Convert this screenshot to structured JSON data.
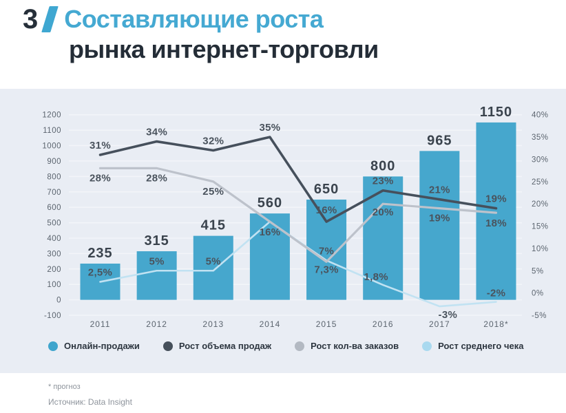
{
  "header": {
    "number": "3",
    "title_line1": "Составляющие роста",
    "title_line2": "рынка интернет-торговли"
  },
  "chart_data": {
    "type": "bar+line",
    "categories": [
      "2011",
      "2012",
      "2013",
      "2014",
      "2015",
      "2016",
      "2017",
      "2018*"
    ],
    "bar_series": {
      "name": "Онлайн-продажи",
      "axis": "left",
      "values": [
        235,
        315,
        415,
        560,
        650,
        800,
        965,
        1150
      ],
      "labels": [
        "235",
        "315",
        "415",
        "560",
        "650",
        "800",
        "965",
        "1150"
      ],
      "color": "#46a7cd"
    },
    "line_series": [
      {
        "id": "sales",
        "name": "Рост объема продаж",
        "axis": "right",
        "values": [
          31,
          34,
          32,
          35,
          16,
          23,
          21,
          19
        ],
        "labels": [
          "31%",
          "34%",
          "32%",
          "35%",
          "16%",
          "23%",
          "21%",
          "19%"
        ],
        "color": "#46505c"
      },
      {
        "id": "orders",
        "name": "Рост кол-ва заказов",
        "axis": "right",
        "values": [
          28,
          28,
          25,
          16,
          7,
          20,
          19,
          18
        ],
        "labels": [
          "28%",
          "28%",
          "25%",
          "",
          "7%",
          "20%",
          "19%",
          "18%"
        ],
        "color": "#bdc2cb"
      },
      {
        "id": "check",
        "name": "Рост среднего чека",
        "axis": "right",
        "values": [
          2.5,
          5,
          5,
          16,
          7.3,
          1.8,
          -3,
          -2
        ],
        "labels": [
          "2,5%",
          "5%",
          "5%",
          "16%",
          "7,3%",
          "1,8%",
          "-3%",
          "-2%"
        ],
        "color": "#c1e2f2"
      }
    ],
    "left_axis": {
      "ticks": [
        1200,
        1100,
        1000,
        900,
        800,
        700,
        600,
        500,
        400,
        300,
        200,
        100,
        0,
        -100
      ],
      "range": [
        -100,
        1200
      ]
    },
    "right_axis": {
      "ticks": [
        "40%",
        "35%",
        "30%",
        "25%",
        "20%",
        "15%",
        "10%",
        "5%",
        "0%",
        "-5%"
      ],
      "range_pct": [
        -5,
        40
      ]
    },
    "grid": true,
    "legend_position": "bottom"
  },
  "legend": {
    "items": [
      {
        "label": "Онлайн-продажи",
        "color": "#3fa5cd",
        "icon": "circle"
      },
      {
        "label": "Рост объема продаж",
        "color": "#454f5a",
        "icon": "circle"
      },
      {
        "label": "Рост кол-ва заказов",
        "color": "#b3b9c2",
        "icon": "circle"
      },
      {
        "label": "Рост среднего чека",
        "color": "#a9d9ef",
        "icon": "circle"
      }
    ]
  },
  "footer": {
    "note": "* прогноз",
    "source": "Источник: Data Insight"
  },
  "colors": {
    "panel_background": "#e9edf4",
    "page_background": "#ffffff",
    "title_accent": "#45a9d2",
    "title_dark": "#242d37",
    "gridline": "#f3f5f9",
    "axis_text": "#5b646e",
    "value_label_text": "#3a434d",
    "percent_label_text": "#4a535d"
  }
}
